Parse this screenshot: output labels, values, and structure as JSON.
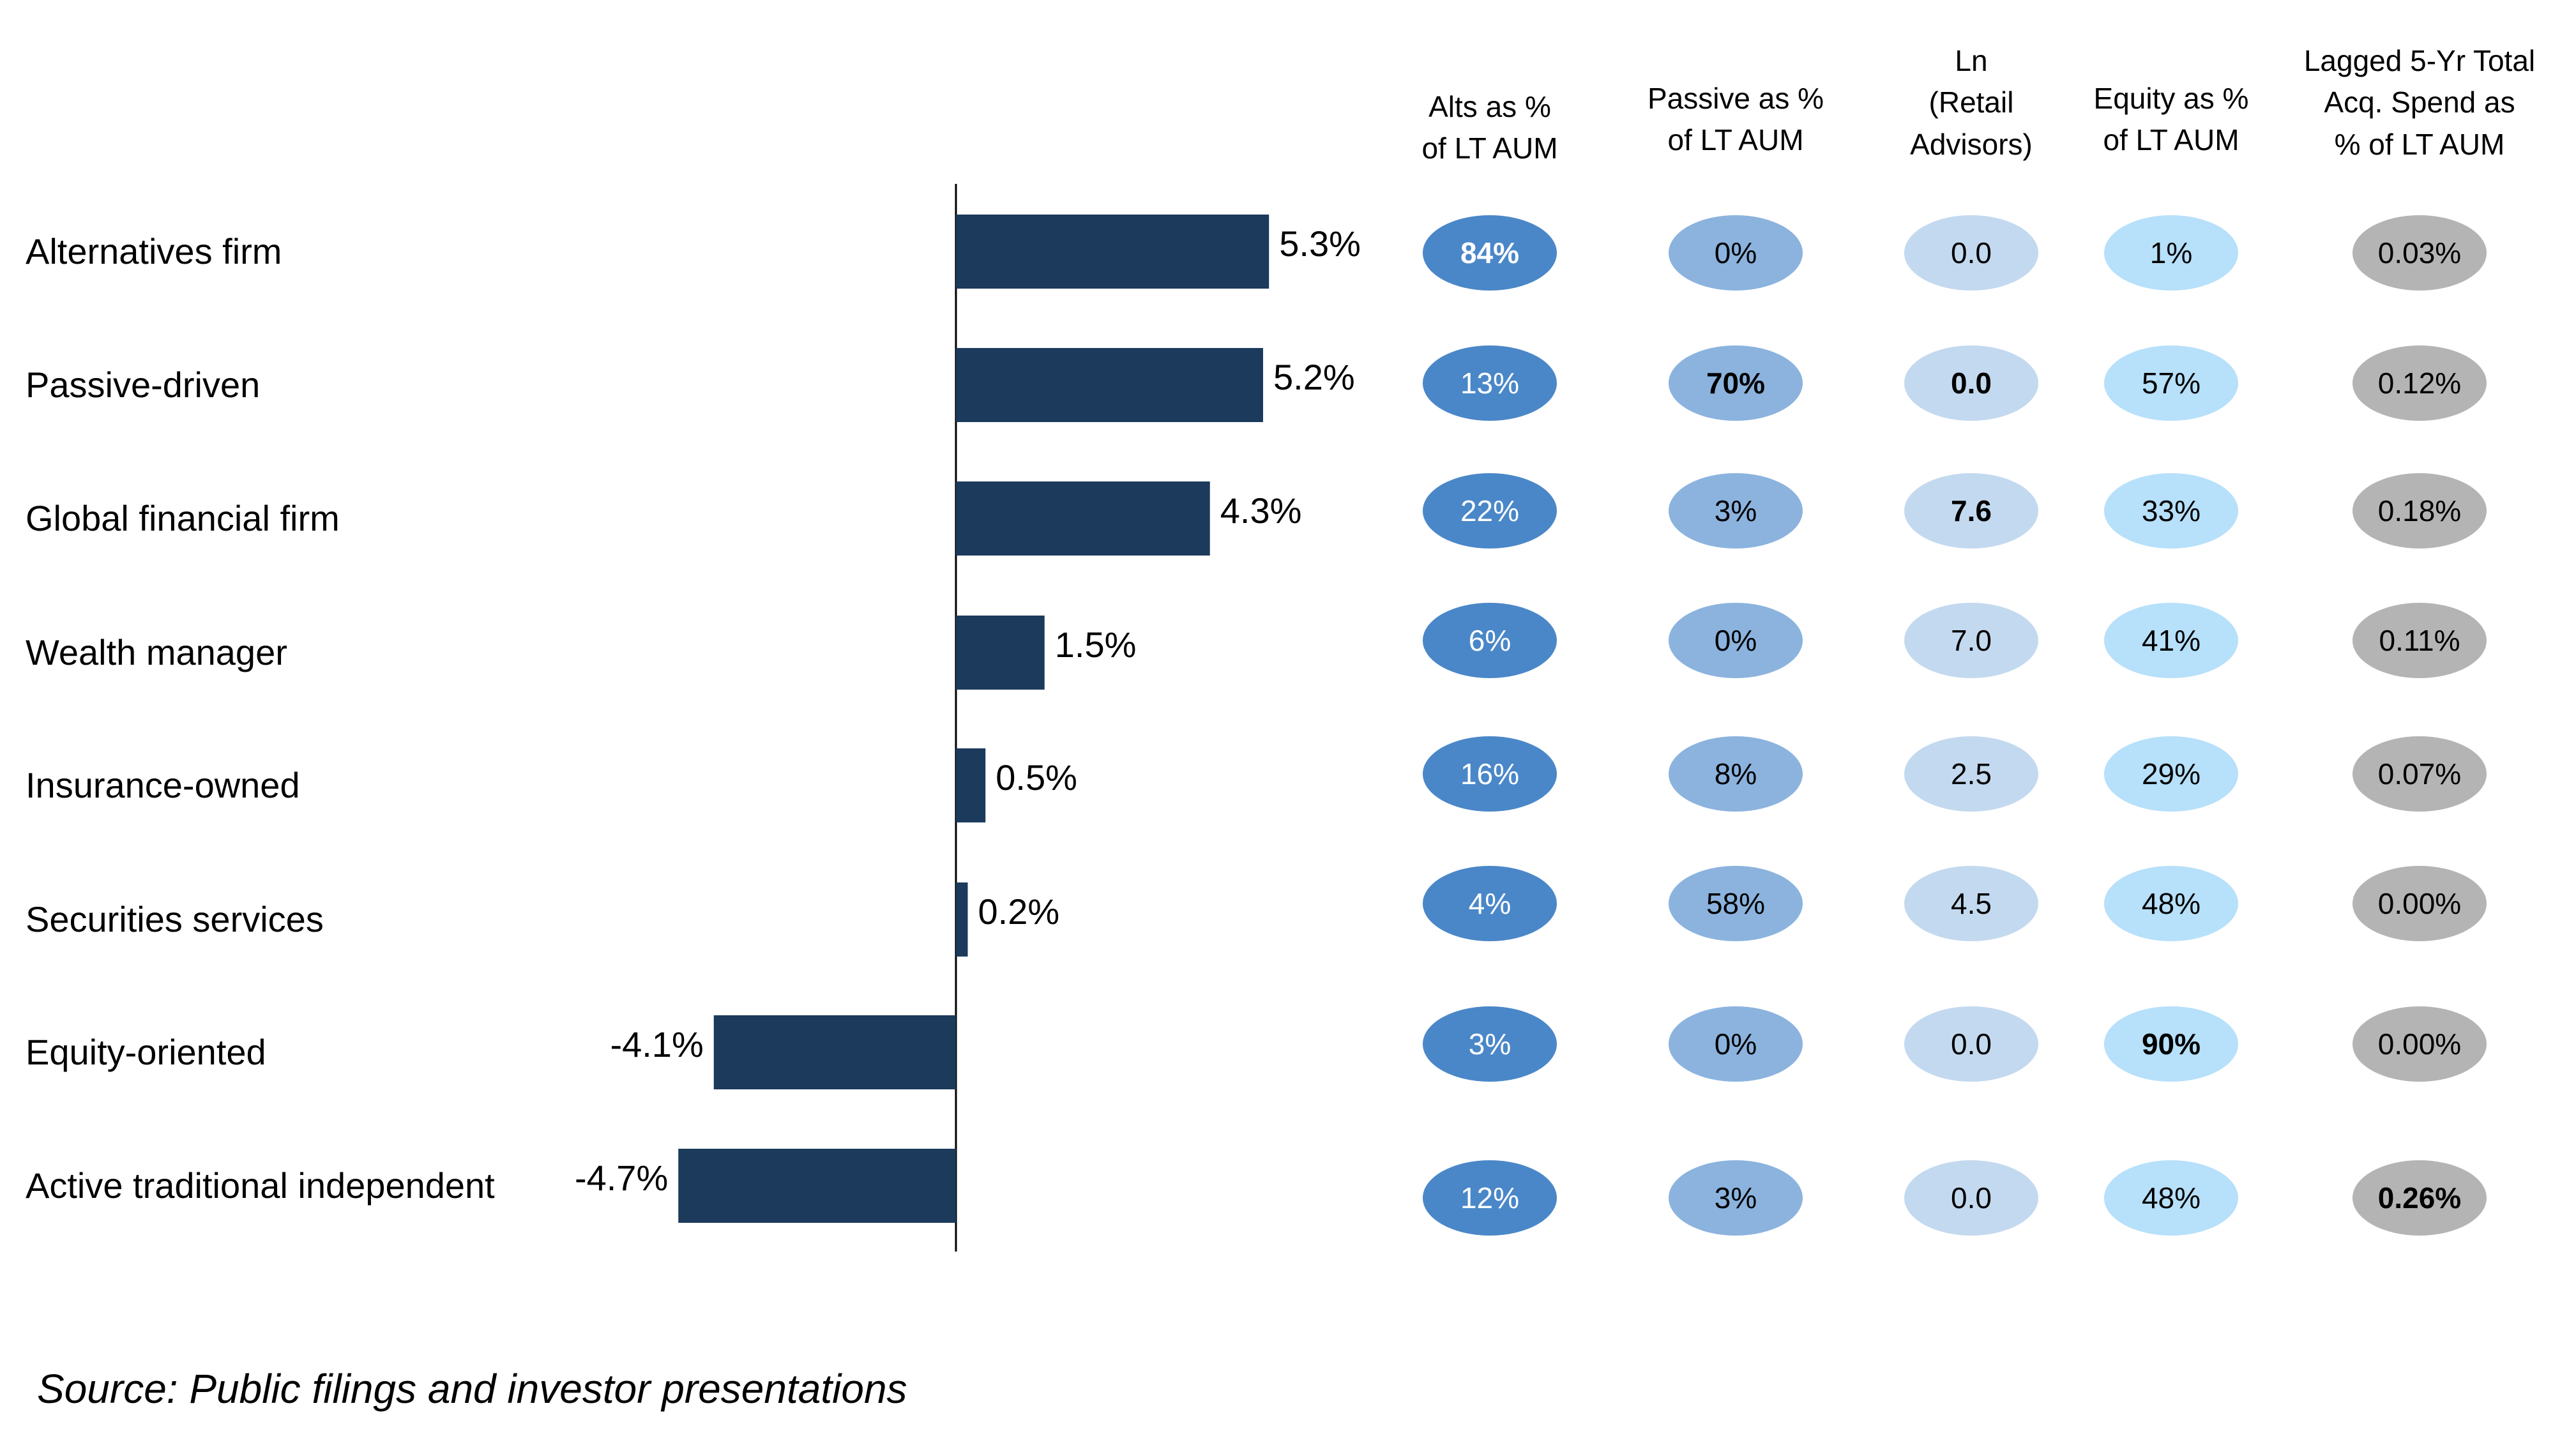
{
  "chart_data": {
    "type": "bar",
    "orientation": "horizontal",
    "categories": [
      "Alternatives firm",
      "Passive-driven",
      "Global financial firm",
      "Wealth manager",
      "Insurance-owned",
      "Securities services",
      "Equity-oriented",
      "Active traditional independent"
    ],
    "values": [
      5.3,
      5.2,
      4.3,
      1.5,
      0.5,
      0.2,
      -4.1,
      -4.7
    ],
    "value_labels": [
      "5.3%",
      "5.2%",
      "4.3%",
      "1.5%",
      "0.5%",
      "0.2%",
      "-4.1%",
      "-4.7%"
    ],
    "xlim": [
      -4.7,
      5.3
    ],
    "bar_color": "#1b3a5c",
    "grid": false,
    "legend": "none"
  },
  "table": {
    "columns": [
      {
        "header": "Alts as %\nof LT AUM",
        "color": "#4a87c8",
        "text_color": "#ffffff",
        "values": [
          "84%",
          "13%",
          "22%",
          "6%",
          "16%",
          "4%",
          "3%",
          "12%"
        ],
        "bold": [
          true,
          false,
          false,
          false,
          false,
          false,
          false,
          false
        ]
      },
      {
        "header": "Passive as %\nof LT AUM",
        "color": "#8bb3de",
        "text_color": "#000000",
        "values": [
          "0%",
          "70%",
          "3%",
          "0%",
          "8%",
          "58%",
          "0%",
          "3%"
        ],
        "bold": [
          false,
          true,
          false,
          false,
          false,
          false,
          false,
          false
        ]
      },
      {
        "header": "Ln\n(Retail\nAdvisors)",
        "color": "#c3d9ef",
        "text_color": "#000000",
        "values": [
          "0.0",
          "0.0",
          "7.6",
          "7.0",
          "2.5",
          "4.5",
          "0.0",
          "0.0"
        ],
        "bold": [
          false,
          true,
          true,
          false,
          false,
          false,
          false,
          false
        ]
      },
      {
        "header": "Equity as %\nof LT AUM",
        "color": "#b7e0fa",
        "text_color": "#000000",
        "values": [
          "1%",
          "57%",
          "33%",
          "41%",
          "29%",
          "48%",
          "90%",
          "48%"
        ],
        "bold": [
          false,
          false,
          false,
          false,
          false,
          false,
          true,
          false
        ]
      },
      {
        "header": "Lagged 5-Yr Total\nAcq. Spend as\n% of LT AUM",
        "color": "#b4b4b4",
        "text_color": "#000000",
        "values": [
          "0.03%",
          "0.12%",
          "0.18%",
          "0.11%",
          "0.07%",
          "0.00%",
          "0.00%",
          "0.26%"
        ],
        "bold": [
          false,
          false,
          false,
          false,
          false,
          false,
          false,
          true
        ]
      }
    ]
  },
  "source": "Source: Public filings and investor presentations"
}
